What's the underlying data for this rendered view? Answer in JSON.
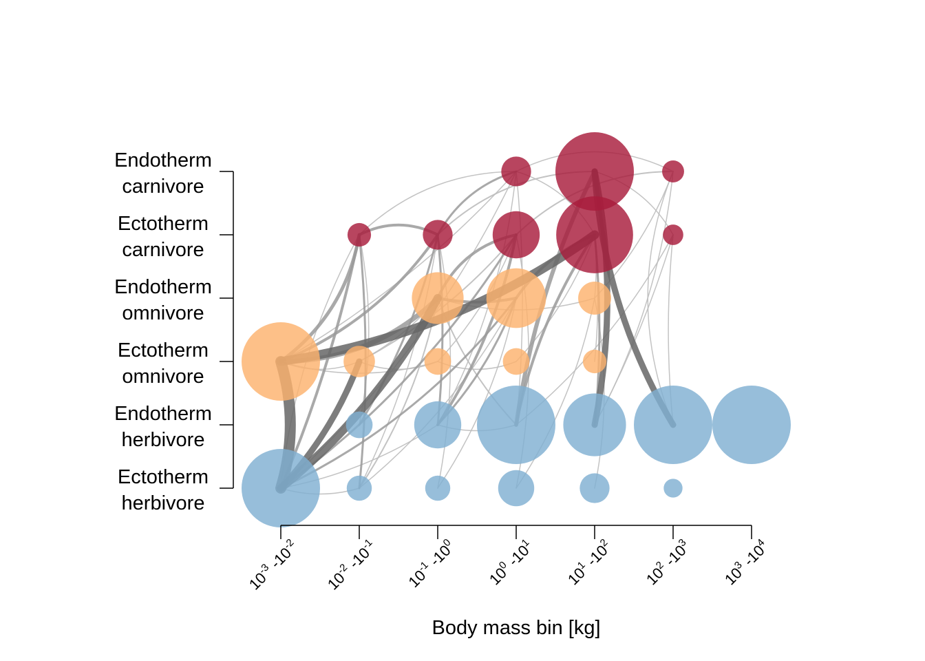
{
  "chart_data": {
    "type": "network",
    "xlabel": "Body mass bin [kg]",
    "x_bins": [
      {
        "base": "10",
        "lo": "-3",
        "hi": "-2"
      },
      {
        "base": "10",
        "lo": "-2",
        "hi": "-1"
      },
      {
        "base": "10",
        "lo": "-1",
        "hi": "0"
      },
      {
        "base": "10",
        "lo": "0",
        "hi": "1"
      },
      {
        "base": "10",
        "lo": "1",
        "hi": "2"
      },
      {
        "base": "10",
        "lo": "2",
        "hi": "3"
      },
      {
        "base": "10",
        "lo": "3",
        "hi": "4"
      }
    ],
    "guilds": [
      {
        "line1": "Endotherm",
        "line2": "carnivore"
      },
      {
        "line1": "Ectotherm",
        "line2": "carnivore"
      },
      {
        "line1": "Endotherm",
        "line2": "omnivore"
      },
      {
        "line1": "Ectotherm",
        "line2": "omnivore"
      },
      {
        "line1": "Endotherm",
        "line2": "herbivore"
      },
      {
        "line1": "Ectotherm",
        "line2": "herbivore"
      }
    ],
    "colors": {
      "carnivore": "#a81c3c",
      "omnivore": "#fdb26e",
      "herbivore": "#80b0d2",
      "edge_light": "#bdbdbd",
      "edge_mid": "#9a9a9a",
      "edge_dark": "#666666"
    },
    "nodes": [
      {
        "guild": 0,
        "bin": 3,
        "size": 0.19
      },
      {
        "guild": 0,
        "bin": 4,
        "size": 0.5
      },
      {
        "guild": 0,
        "bin": 5,
        "size": 0.14
      },
      {
        "guild": 1,
        "bin": 1,
        "size": 0.15
      },
      {
        "guild": 1,
        "bin": 2,
        "size": 0.19
      },
      {
        "guild": 1,
        "bin": 3,
        "size": 0.3
      },
      {
        "guild": 1,
        "bin": 4,
        "size": 0.49
      },
      {
        "guild": 1,
        "bin": 5,
        "size": 0.13
      },
      {
        "guild": 2,
        "bin": 2,
        "size": 0.33
      },
      {
        "guild": 2,
        "bin": 3,
        "size": 0.38
      },
      {
        "guild": 2,
        "bin": 4,
        "size": 0.21
      },
      {
        "guild": 3,
        "bin": 0,
        "size": 0.5
      },
      {
        "guild": 3,
        "bin": 1,
        "size": 0.2
      },
      {
        "guild": 3,
        "bin": 2,
        "size": 0.17
      },
      {
        "guild": 3,
        "bin": 3,
        "size": 0.17
      },
      {
        "guild": 3,
        "bin": 4,
        "size": 0.15
      },
      {
        "guild": 4,
        "bin": 1,
        "size": 0.17
      },
      {
        "guild": 4,
        "bin": 2,
        "size": 0.3
      },
      {
        "guild": 4,
        "bin": 3,
        "size": 0.5
      },
      {
        "guild": 4,
        "bin": 4,
        "size": 0.4
      },
      {
        "guild": 4,
        "bin": 5,
        "size": 0.5
      },
      {
        "guild": 4,
        "bin": 6,
        "size": 0.5
      },
      {
        "guild": 5,
        "bin": 0,
        "size": 0.5
      },
      {
        "guild": 5,
        "bin": 1,
        "size": 0.16
      },
      {
        "guild": 5,
        "bin": 2,
        "size": 0.16
      },
      {
        "guild": 5,
        "bin": 3,
        "size": 0.23
      },
      {
        "guild": 5,
        "bin": 4,
        "size": 0.19
      },
      {
        "guild": 5,
        "bin": 5,
        "size": 0.12
      }
    ],
    "edges": [
      {
        "from": [
          5,
          0
        ],
        "to": [
          3,
          0
        ],
        "weight": 16,
        "curve": 0.15
      },
      {
        "from": [
          3,
          0
        ],
        "to": [
          1,
          4
        ],
        "weight": 13,
        "curve": 0.12
      },
      {
        "from": [
          5,
          0
        ],
        "to": [
          2,
          2
        ],
        "weight": 12,
        "curve": 0.1
      },
      {
        "from": [
          5,
          0
        ],
        "to": [
          3,
          1
        ],
        "weight": 9,
        "curve": 0.1
      },
      {
        "from": [
          3,
          0
        ],
        "to": [
          2,
          2
        ],
        "weight": 7,
        "curve": 0.2
      },
      {
        "from": [
          4,
          4
        ],
        "to": [
          0,
          4
        ],
        "weight": 9,
        "curve": 0.1
      },
      {
        "from": [
          4,
          5
        ],
        "to": [
          0,
          4
        ],
        "weight": 9,
        "curve": -0.12
      },
      {
        "from": [
          4,
          3
        ],
        "to": [
          0,
          4
        ],
        "weight": 6,
        "curve": -0.08
      },
      {
        "from": [
          3,
          0
        ],
        "to": [
          1,
          1
        ],
        "weight": 5,
        "curve": 0.2
      },
      {
        "from": [
          3,
          0
        ],
        "to": [
          1,
          2
        ],
        "weight": 4,
        "curve": 0.15
      },
      {
        "from": [
          5,
          0
        ],
        "to": [
          1,
          1
        ],
        "weight": 4,
        "curve": 0.05
      },
      {
        "from": [
          2,
          2
        ],
        "to": [
          1,
          3
        ],
        "weight": 4,
        "curve": -0.25
      },
      {
        "from": [
          1,
          1
        ],
        "to": [
          1,
          2
        ],
        "weight": 4,
        "curve": -0.25
      },
      {
        "from": [
          2,
          2
        ],
        "to": [
          2,
          3
        ],
        "weight": 4,
        "curve": 0.1
      },
      {
        "from": [
          1,
          2
        ],
        "to": [
          0,
          3
        ],
        "weight": 3,
        "curve": -0.2
      },
      {
        "from": [
          2,
          3
        ],
        "to": [
          1,
          4
        ],
        "weight": 4,
        "curve": -0.15
      },
      {
        "from": [
          4,
          2
        ],
        "to": [
          1,
          3
        ],
        "weight": 4,
        "curve": 0.1
      },
      {
        "from": [
          4,
          3
        ],
        "to": [
          1,
          4
        ],
        "weight": 4,
        "curve": -0.1
      },
      {
        "from": [
          4,
          2
        ],
        "to": [
          1,
          2
        ],
        "weight": 3,
        "curve": 0.05
      },
      {
        "from": [
          5,
          1
        ],
        "to": [
          1,
          1
        ],
        "weight": 3,
        "curve": 0.05
      },
      {
        "from": [
          4,
          1
        ],
        "to": [
          1,
          2
        ],
        "weight": 3,
        "curve": 0.08
      },
      {
        "from": [
          5,
          0
        ],
        "to": [
          1,
          3
        ],
        "weight": 3,
        "curve": 0.1
      },
      {
        "from": [
          5,
          0
        ],
        "to": [
          2,
          3
        ],
        "weight": 3,
        "curve": 0.12
      },
      {
        "from": [
          3,
          1
        ],
        "to": [
          1,
          3
        ],
        "weight": 2,
        "curve": 0.1
      },
      {
        "from": [
          4,
          2
        ],
        "to": [
          2,
          3
        ],
        "weight": 3,
        "curve": 0.1
      },
      {
        "from": [
          4,
          3
        ],
        "to": [
          2,
          2
        ],
        "weight": 2,
        "curve": -0.1
      },
      {
        "from": [
          4,
          4
        ],
        "to": [
          1,
          4
        ],
        "weight": 3,
        "curve": 0.05
      },
      {
        "from": [
          5,
          1
        ],
        "to": [
          2,
          2
        ],
        "weight": 2,
        "curve": 0.1
      },
      {
        "from": [
          1,
          2
        ],
        "to": [
          0,
          4
        ],
        "weight": 2,
        "curve": -0.2
      },
      {
        "from": [
          1,
          3
        ],
        "to": [
          0,
          5
        ],
        "weight": 2,
        "curve": -0.2
      },
      {
        "from": [
          0,
          3
        ],
        "to": [
          0,
          5
        ],
        "weight": 1.5,
        "curve": -0.25
      },
      {
        "from": [
          1,
          1
        ],
        "to": [
          0,
          3
        ],
        "weight": 1.5,
        "curve": -0.2
      },
      {
        "from": [
          5,
          0
        ],
        "to": [
          0,
          3
        ],
        "weight": 1.5,
        "curve": 0.1
      },
      {
        "from": [
          3,
          0
        ],
        "to": [
          0,
          3
        ],
        "weight": 1.5,
        "curve": 0.08
      },
      {
        "from": [
          4,
          1
        ],
        "to": [
          1,
          1
        ],
        "weight": 1.5,
        "curve": 0.1
      },
      {
        "from": [
          5,
          1
        ],
        "to": [
          1,
          2
        ],
        "weight": 1.5,
        "curve": 0.08
      },
      {
        "from": [
          5,
          2
        ],
        "to": [
          1,
          2
        ],
        "weight": 1.5,
        "curve": 0.1
      },
      {
        "from": [
          4,
          2
        ],
        "to": [
          0,
          3
        ],
        "weight": 1.5,
        "curve": 0.1
      },
      {
        "from": [
          4,
          3
        ],
        "to": [
          0,
          3
        ],
        "weight": 1.5,
        "curve": 0.05
      },
      {
        "from": [
          5,
          3
        ],
        "to": [
          1,
          3
        ],
        "weight": 1.5,
        "curve": 0.1
      },
      {
        "from": [
          4,
          3
        ],
        "to": [
          1,
          5
        ],
        "weight": 1.5,
        "curve": 0.1
      },
      {
        "from": [
          4,
          4
        ],
        "to": [
          1,
          5
        ],
        "weight": 1.5,
        "curve": 0.05
      },
      {
        "from": [
          4,
          5
        ],
        "to": [
          1,
          5
        ],
        "weight": 1.5,
        "curve": -0.05
      },
      {
        "from": [
          4,
          4
        ],
        "to": [
          0,
          5
        ],
        "weight": 1.5,
        "curve": 0.1
      },
      {
        "from": [
          4,
          5
        ],
        "to": [
          0,
          5
        ],
        "weight": 1.5,
        "curve": -0.2
      },
      {
        "from": [
          3,
          2
        ],
        "to": [
          1,
          3
        ],
        "weight": 1.5,
        "curve": 0.1
      },
      {
        "from": [
          3,
          3
        ],
        "to": [
          1,
          4
        ],
        "weight": 1.5,
        "curve": 0.1
      },
      {
        "from": [
          3,
          4
        ],
        "to": [
          1,
          4
        ],
        "weight": 1.5,
        "curve": 0.05
      },
      {
        "from": [
          2,
          4
        ],
        "to": [
          1,
          4
        ],
        "weight": 1.5,
        "curve": 0.05
      },
      {
        "from": [
          2,
          4
        ],
        "to": [
          0,
          5
        ],
        "weight": 1.5,
        "curve": 0.1
      },
      {
        "from": [
          3,
          1
        ],
        "to": [
          2,
          2
        ],
        "weight": 1.5,
        "curve": 0.1
      },
      {
        "from": [
          5,
          1
        ],
        "to": [
          2,
          3
        ],
        "weight": 1.5,
        "curve": 0.1
      },
      {
        "from": [
          5,
          2
        ],
        "to": [
          2,
          3
        ],
        "weight": 1.5,
        "curve": 0.1
      },
      {
        "from": [
          5,
          3
        ],
        "to": [
          2,
          4
        ],
        "weight": 1.5,
        "curve": 0.1
      },
      {
        "from": [
          5,
          4
        ],
        "to": [
          2,
          4
        ],
        "weight": 1.5,
        "curve": 0.1
      },
      {
        "from": [
          3,
          0
        ],
        "to": [
          3,
          1
        ],
        "weight": 1.5,
        "curve": 0.2
      },
      {
        "from": [
          3,
          0
        ],
        "to": [
          3,
          2
        ],
        "weight": 1.5,
        "curve": 0.15
      },
      {
        "from": [
          5,
          0
        ],
        "to": [
          4,
          2
        ],
        "weight": 1.5,
        "curve": 0.1
      },
      {
        "from": [
          5,
          0
        ],
        "to": [
          5,
          1
        ],
        "weight": 1.5,
        "curve": 0.15
      },
      {
        "from": [
          3,
          1
        ],
        "to": [
          3,
          2
        ],
        "weight": 1.5,
        "curve": 0.2
      },
      {
        "from": [
          3,
          2
        ],
        "to": [
          3,
          3
        ],
        "weight": 1.5,
        "curve": 0.2
      },
      {
        "from": [
          2,
          2
        ],
        "to": [
          2,
          4
        ],
        "weight": 1.5,
        "curve": 0.15
      },
      {
        "from": [
          1,
          1
        ],
        "to": [
          5,
          0
        ],
        "weight": 1.5,
        "curve": 0.1
      },
      {
        "from": [
          0,
          3
        ],
        "to": [
          1,
          4
        ],
        "weight": 1.5,
        "curve": -0.2
      },
      {
        "from": [
          1,
          5
        ],
        "to": [
          0,
          4
        ],
        "weight": 1.5,
        "curve": 0.2
      },
      {
        "from": [
          4,
          2
        ],
        "to": [
          4,
          3
        ],
        "weight": 1.5,
        "curve": 0.15
      }
    ]
  }
}
